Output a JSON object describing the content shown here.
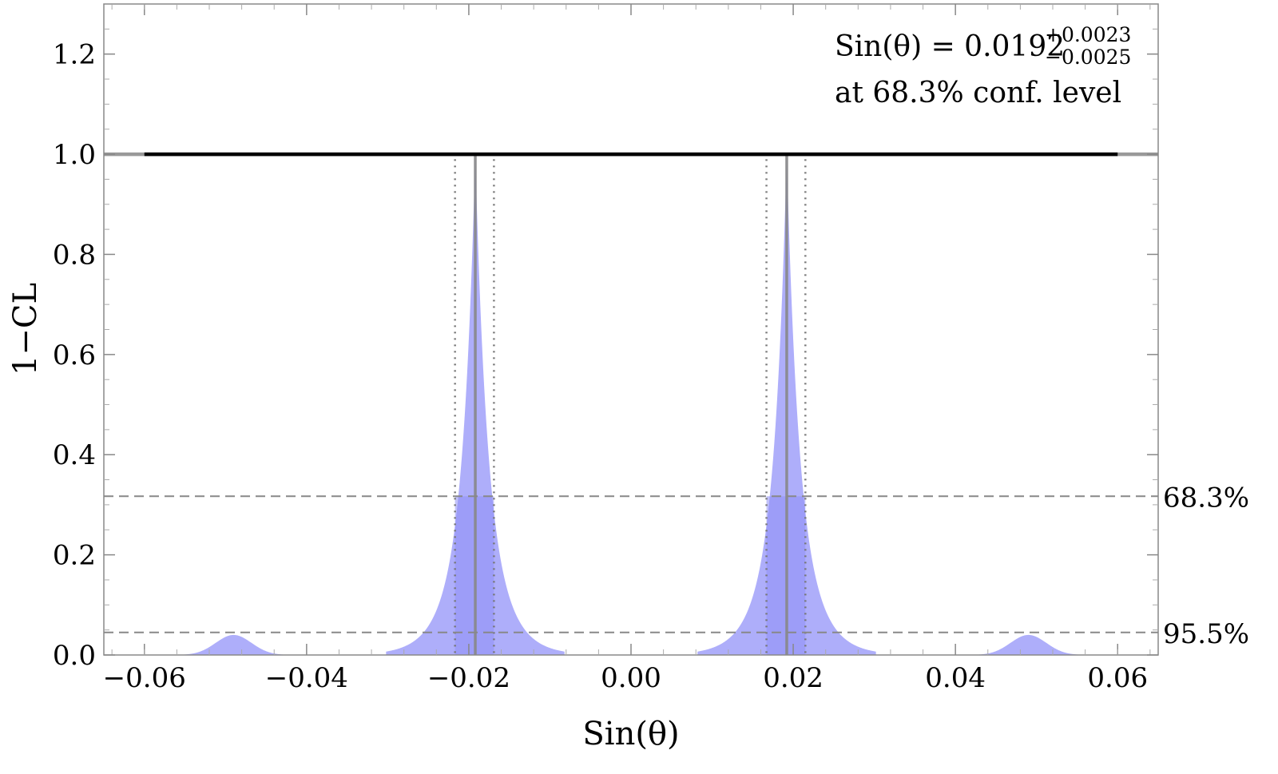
{
  "chart_data": {
    "type": "area",
    "xlabel": "Sin(θ)",
    "ylabel": "1−CL",
    "xlim": [
      -0.065,
      0.065
    ],
    "ylim": [
      0,
      1.3
    ],
    "x_ticks": [
      -0.06,
      -0.04,
      -0.02,
      0.0,
      0.02,
      0.04,
      0.06
    ],
    "x_tick_labels": [
      "−0.06",
      "−0.04",
      "−0.02",
      "0.00",
      "0.02",
      "0.04",
      "0.06"
    ],
    "y_ticks": [
      0.0,
      0.2,
      0.4,
      0.6,
      0.8,
      1.0,
      1.2
    ],
    "y_tick_labels": [
      "0.0",
      "0.2",
      "0.4",
      "0.6",
      "0.8",
      "1.0",
      "1.2"
    ],
    "annotation": {
      "main": "Sin(θ) = 0.0192",
      "sup": "+0.0023",
      "sub": "−0.0025",
      "line2": "at 68.3% conf. level"
    },
    "reference_line": {
      "y": 1.0,
      "x_from": -0.06,
      "x_to": 0.06
    },
    "cl_lines": [
      {
        "label": "68.3%",
        "y": 0.317
      },
      {
        "label": "95.5%",
        "y": 0.045
      }
    ],
    "peaks": [
      {
        "center": -0.0192,
        "height": 1.0,
        "low": -0.0217,
        "high": -0.0169
      },
      {
        "center": 0.0192,
        "height": 1.0,
        "low": 0.0167,
        "high": 0.0215
      }
    ],
    "secondary_peaks": [
      {
        "center": -0.049,
        "height": 0.04
      },
      {
        "center": 0.049,
        "height": 0.04
      }
    ],
    "colors": {
      "fill": "#aeaefa",
      "band": "#8f8ff5",
      "reference": "#000000",
      "guide": "#888888"
    }
  }
}
